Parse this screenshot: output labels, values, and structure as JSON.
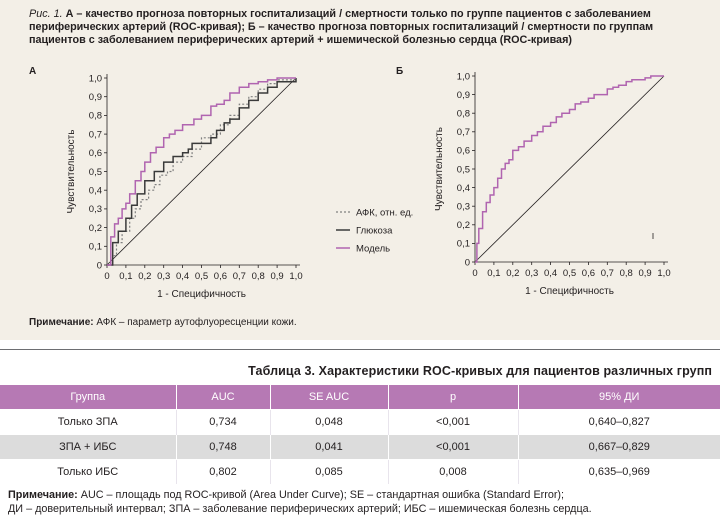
{
  "figure": {
    "caption_num": "Рис. 1.",
    "caption_text": "А – качество прогноза повторных госпитализаций / смертности только по группе пациентов с заболеванием периферических артерий (ROC-кривая); Б – качество прогноза повторных госпитализаций / смертности по группам пациентов с заболеванием периферических артерий + ишемической болезнью сердца (ROC-кривая)",
    "note_label": "Примечание:",
    "note_text": " АФК – параметр аутофлуоресценции кожи."
  },
  "colors": {
    "figure_bg": "#f3efe7",
    "model": "#b064b0",
    "glucose": "#3a3a3a",
    "afk": "#808080",
    "header": "#b679b4"
  },
  "chart_data": [
    {
      "type": "line",
      "panel": "А",
      "xlabel": "1 - Специфичность",
      "ylabel": "Чувствительность",
      "xlim": [
        0,
        1
      ],
      "ylim": [
        0,
        1
      ],
      "x_ticks": [
        "0",
        "0,1",
        "0,2",
        "0,3",
        "0,4",
        "0,5",
        "0,6",
        "0,7",
        "0,8",
        "0,9",
        "1,0"
      ],
      "y_ticks": [
        "0",
        "0,1",
        "0,2",
        "0,3",
        "0,4",
        "0,5",
        "0,6",
        "0,7",
        "0,8",
        "0,9",
        "1,0"
      ],
      "legend_position": "bottom-right",
      "series": [
        {
          "name": "АФК, отн. ед.",
          "style": "dotted",
          "x": [
            0,
            0.03,
            0.05,
            0.08,
            0.12,
            0.15,
            0.18,
            0.22,
            0.25,
            0.28,
            0.32,
            0.35,
            0.4,
            0.45,
            0.5,
            0.55,
            0.6,
            0.65,
            0.7,
            0.75,
            0.8,
            0.85,
            0.9,
            1.0
          ],
          "y": [
            0,
            0.05,
            0.12,
            0.18,
            0.25,
            0.3,
            0.35,
            0.4,
            0.43,
            0.48,
            0.5,
            0.55,
            0.58,
            0.62,
            0.68,
            0.7,
            0.75,
            0.8,
            0.86,
            0.9,
            0.94,
            0.97,
            0.99,
            1.0
          ]
        },
        {
          "name": "Глюкоза",
          "style": "solid",
          "x": [
            0,
            0.03,
            0.06,
            0.1,
            0.13,
            0.16,
            0.2,
            0.25,
            0.3,
            0.35,
            0.4,
            0.43,
            0.45,
            0.5,
            0.55,
            0.58,
            0.62,
            0.65,
            0.7,
            0.75,
            0.8,
            0.85,
            0.9,
            1.0
          ],
          "y": [
            0,
            0.12,
            0.18,
            0.25,
            0.32,
            0.38,
            0.45,
            0.5,
            0.55,
            0.58,
            0.6,
            0.62,
            0.65,
            0.65,
            0.68,
            0.72,
            0.76,
            0.78,
            0.84,
            0.88,
            0.92,
            0.95,
            0.98,
            1.0
          ]
        },
        {
          "name": "Модель",
          "style": "solid",
          "x": [
            0,
            0.02,
            0.04,
            0.06,
            0.08,
            0.1,
            0.12,
            0.15,
            0.18,
            0.2,
            0.23,
            0.26,
            0.3,
            0.33,
            0.36,
            0.4,
            0.43,
            0.46,
            0.5,
            0.55,
            0.58,
            0.62,
            0.65,
            0.7,
            0.75,
            0.8,
            0.85,
            0.9,
            0.95,
            1.0
          ],
          "y": [
            0,
            0.15,
            0.22,
            0.25,
            0.3,
            0.33,
            0.38,
            0.45,
            0.5,
            0.55,
            0.6,
            0.63,
            0.68,
            0.7,
            0.72,
            0.75,
            0.75,
            0.78,
            0.8,
            0.85,
            0.86,
            0.88,
            0.92,
            0.95,
            0.97,
            0.98,
            0.99,
            1.0,
            1.0,
            1.0
          ]
        }
      ],
      "reference_line": {
        "x": [
          0,
          1
        ],
        "y": [
          0,
          1
        ]
      }
    },
    {
      "type": "line",
      "panel": "Б",
      "xlabel": "1 - Специфичность",
      "ylabel": "Чувствительность",
      "xlim": [
        0,
        1
      ],
      "ylim": [
        0,
        1
      ],
      "x_ticks": [
        "0",
        "0,1",
        "0,2",
        "0,3",
        "0,4",
        "0,5",
        "0,6",
        "0,7",
        "0,8",
        "0,9",
        "1,0"
      ],
      "y_ticks": [
        "0",
        "0,1",
        "0,2",
        "0,3",
        "0,4",
        "0,5",
        "0,6",
        "0,7",
        "0,8",
        "0,9",
        "1,0"
      ],
      "series": [
        {
          "name": "Модель",
          "style": "solid",
          "x": [
            0,
            0.01,
            0.02,
            0.04,
            0.06,
            0.08,
            0.1,
            0.12,
            0.14,
            0.16,
            0.18,
            0.2,
            0.23,
            0.26,
            0.3,
            0.33,
            0.36,
            0.4,
            0.43,
            0.46,
            0.5,
            0.53,
            0.56,
            0.6,
            0.63,
            0.66,
            0.7,
            0.73,
            0.76,
            0.8,
            0.83,
            0.86,
            0.9,
            0.93,
            0.96,
            1.0
          ],
          "y": [
            0,
            0.1,
            0.18,
            0.27,
            0.32,
            0.36,
            0.4,
            0.45,
            0.5,
            0.53,
            0.55,
            0.6,
            0.62,
            0.65,
            0.68,
            0.7,
            0.73,
            0.75,
            0.78,
            0.8,
            0.82,
            0.85,
            0.86,
            0.88,
            0.9,
            0.9,
            0.93,
            0.94,
            0.95,
            0.97,
            0.98,
            0.98,
            0.99,
            1.0,
            1.0,
            1.0
          ]
        }
      ],
      "reference_line": {
        "x": [
          0,
          1
        ],
        "y": [
          0,
          1
        ]
      }
    }
  ],
  "table": {
    "title": "Таблица 3. Характеристики ROC-кривых для пациентов различных групп",
    "headers": [
      "Группа",
      "AUC",
      "SE AUC",
      "p",
      "95% ДИ"
    ],
    "rows": [
      [
        "Только ЗПА",
        "0,734",
        "0,048",
        "<0,001",
        "0,640–0,827"
      ],
      [
        "ЗПА + ИБС",
        "0,748",
        "0,041",
        "<0,001",
        "0,667–0,829"
      ],
      [
        "Только ИБС",
        "0,802",
        "0,085",
        "0,008",
        "0,635–0,969"
      ]
    ],
    "note_label": "Примечание:",
    "note_line1": " AUC – площадь под ROC-кривой (Area Under Curve); SE – стандартная ошибка (Standard Error);",
    "note_line2": "ДИ – доверительный интервал; ЗПА – заболевание периферических артерий; ИБС – ишемическая болезнь сердца."
  }
}
